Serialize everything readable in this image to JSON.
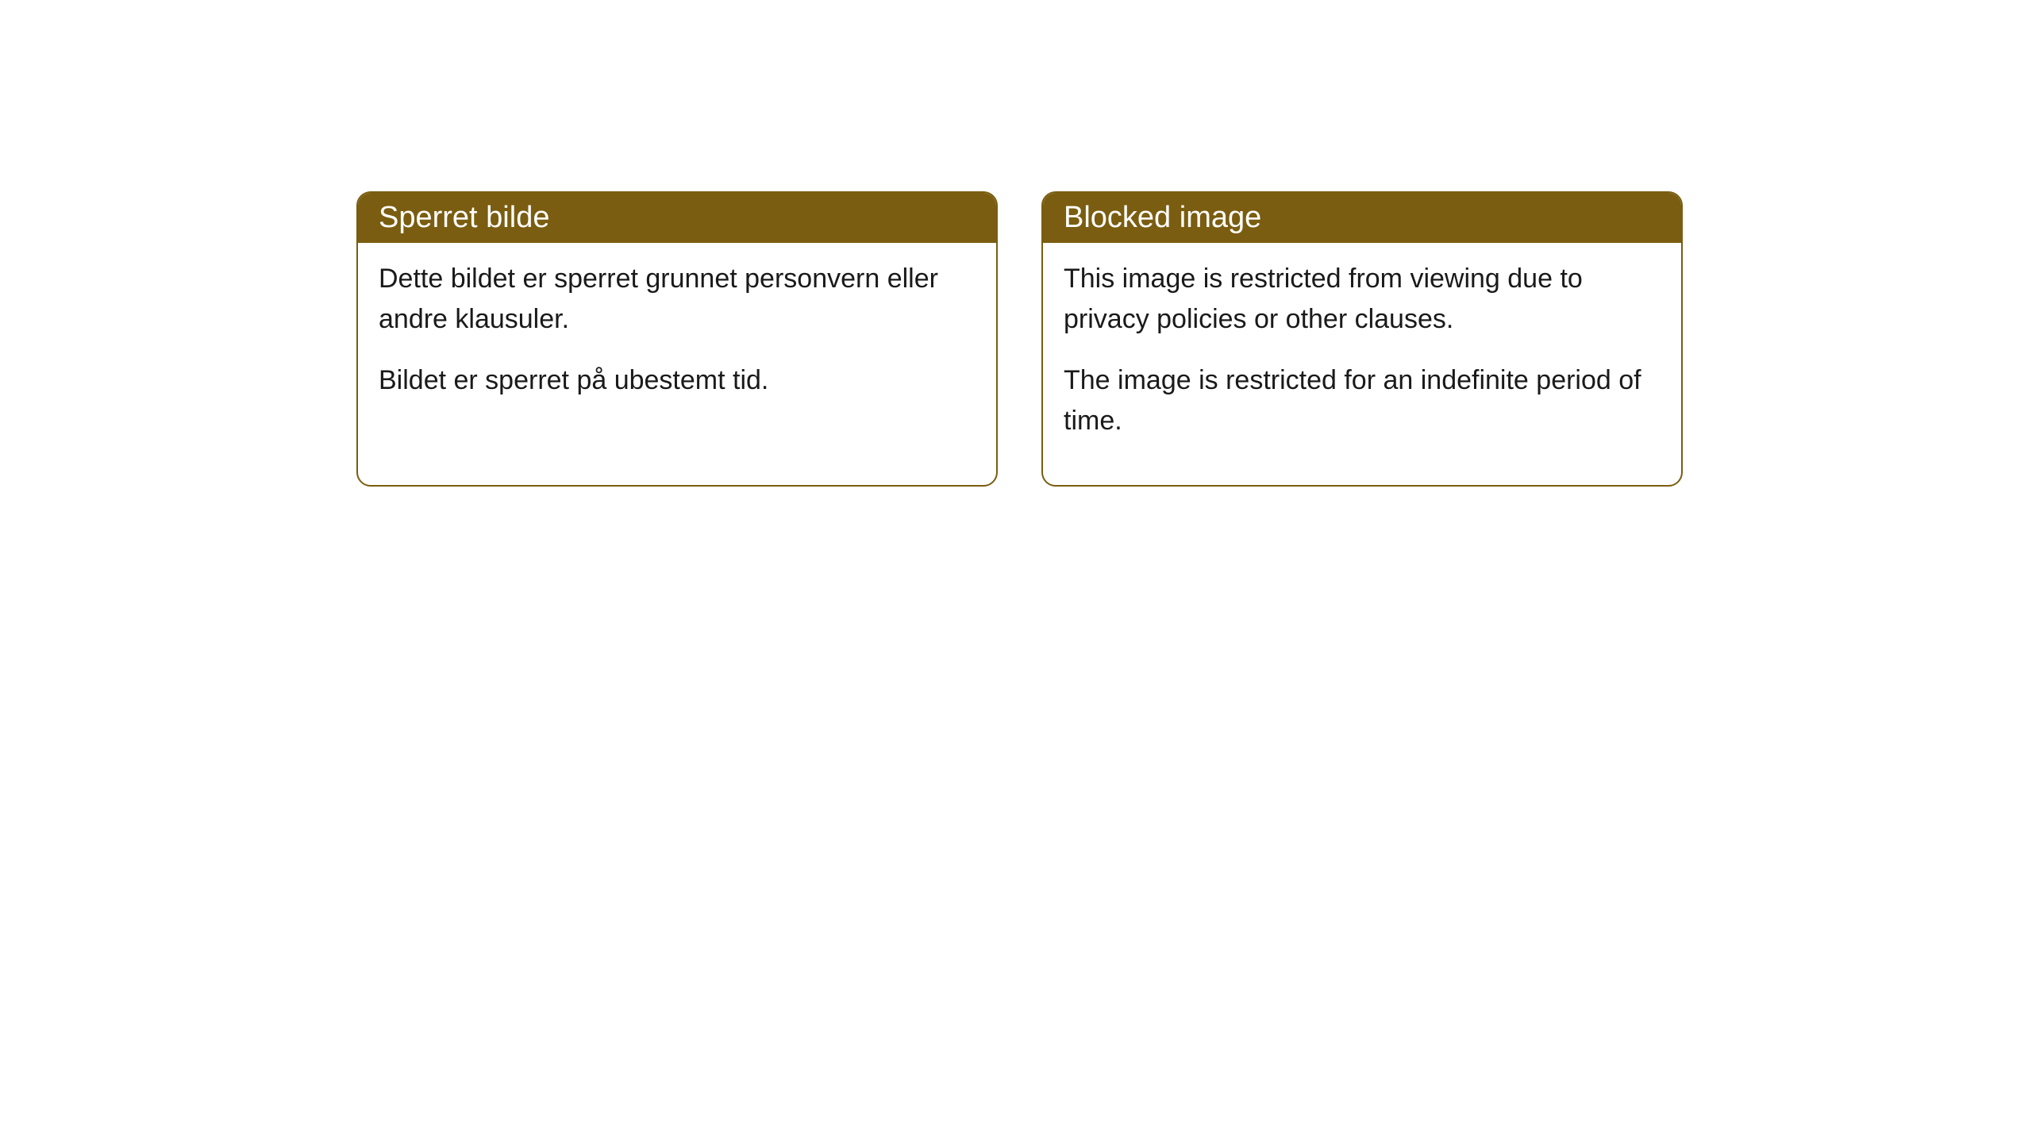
{
  "cards": [
    {
      "title": "Sperret bilde",
      "paragraph1": "Dette bildet er sperret grunnet personvern eller andre klausuler.",
      "paragraph2": "Bildet er sperret på ubestemt tid."
    },
    {
      "title": "Blocked image",
      "paragraph1": "This image is restricted from viewing due to privacy policies or other clauses.",
      "paragraph2": "The image is restricted for an indefinite period of time."
    }
  ],
  "styling": {
    "header_background": "#7a5d10",
    "header_text_color": "#ffffff",
    "body_background": "#ffffff",
    "border_color": "#7a5d10",
    "body_text_color": "#1a1a1a",
    "border_radius": 18,
    "title_fontsize": 38,
    "body_fontsize": 34
  }
}
